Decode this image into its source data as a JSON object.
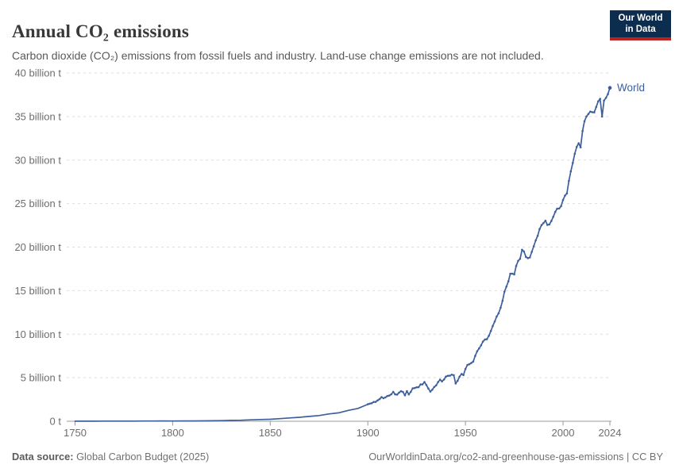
{
  "logo": {
    "line1": "Our World",
    "line2": "in Data",
    "bg_color": "#0d2d4e",
    "accent_color": "#bb221b"
  },
  "footer": {
    "source_label": "Data source:",
    "source_value": " Global Carbon Budget (2025)",
    "citation": "OurWorldinData.org/co2-and-greenhouse-gas-emissions | CC BY"
  },
  "chart_data": {
    "type": "line",
    "title": "Annual CO₂ emissions",
    "subtitle": "Carbon dioxide (CO₂) emissions from fossil fuels and industry. Land-use change emissions are not included.",
    "xlabel": "",
    "ylabel": "",
    "xlim": [
      1750,
      2024
    ],
    "ylim": [
      0,
      40
    ],
    "grid": "horizontal-dashed",
    "legend_position": "end-of-line-label",
    "x_ticks": [
      1750,
      1800,
      1850,
      1900,
      1950,
      2000,
      2024
    ],
    "y_ticks": [
      {
        "v": 0,
        "label": "0 t"
      },
      {
        "v": 5,
        "label": "5 billion t"
      },
      {
        "v": 10,
        "label": "10 billion t"
      },
      {
        "v": 15,
        "label": "15 billion t"
      },
      {
        "v": 20,
        "label": "20 billion t"
      },
      {
        "v": 25,
        "label": "25 billion t"
      },
      {
        "v": 30,
        "label": "30 billion t"
      },
      {
        "v": 35,
        "label": "35 billion t"
      },
      {
        "v": 40,
        "label": "40 billion t"
      }
    ],
    "series": [
      {
        "name": "World",
        "color": "#3d5f9c",
        "unit": "billion tonnes CO₂",
        "points": [
          [
            1750,
            0.01
          ],
          [
            1755,
            0.011
          ],
          [
            1760,
            0.012
          ],
          [
            1765,
            0.014
          ],
          [
            1770,
            0.016
          ],
          [
            1775,
            0.019
          ],
          [
            1780,
            0.021
          ],
          [
            1785,
            0.025
          ],
          [
            1790,
            0.03
          ],
          [
            1795,
            0.033
          ],
          [
            1800,
            0.03
          ],
          [
            1805,
            0.032
          ],
          [
            1810,
            0.04
          ],
          [
            1815,
            0.045
          ],
          [
            1820,
            0.054
          ],
          [
            1825,
            0.07
          ],
          [
            1830,
            0.1
          ],
          [
            1835,
            0.12
          ],
          [
            1840,
            0.16
          ],
          [
            1845,
            0.2
          ],
          [
            1850,
            0.23
          ],
          [
            1855,
            0.3
          ],
          [
            1860,
            0.38
          ],
          [
            1865,
            0.46
          ],
          [
            1870,
            0.56
          ],
          [
            1875,
            0.66
          ],
          [
            1880,
            0.84
          ],
          [
            1885,
            0.97
          ],
          [
            1890,
            1.25
          ],
          [
            1895,
            1.48
          ],
          [
            1900,
            1.95
          ],
          [
            1901,
            2.02
          ],
          [
            1902,
            2.08
          ],
          [
            1903,
            2.21
          ],
          [
            1904,
            2.22
          ],
          [
            1905,
            2.4
          ],
          [
            1906,
            2.54
          ],
          [
            1907,
            2.77
          ],
          [
            1908,
            2.65
          ],
          [
            1909,
            2.74
          ],
          [
            1910,
            2.9
          ],
          [
            1911,
            2.95
          ],
          [
            1912,
            3.1
          ],
          [
            1913,
            3.38
          ],
          [
            1914,
            3.09
          ],
          [
            1915,
            3.06
          ],
          [
            1916,
            3.29
          ],
          [
            1917,
            3.45
          ],
          [
            1918,
            3.37
          ],
          [
            1919,
            2.98
          ],
          [
            1920,
            3.45
          ],
          [
            1921,
            3.09
          ],
          [
            1922,
            3.38
          ],
          [
            1923,
            3.78
          ],
          [
            1924,
            3.82
          ],
          [
            1925,
            3.9
          ],
          [
            1926,
            3.92
          ],
          [
            1927,
            4.23
          ],
          [
            1928,
            4.24
          ],
          [
            1929,
            4.5
          ],
          [
            1930,
            4.16
          ],
          [
            1931,
            3.76
          ],
          [
            1932,
            3.41
          ],
          [
            1933,
            3.62
          ],
          [
            1934,
            3.94
          ],
          [
            1935,
            4.12
          ],
          [
            1936,
            4.51
          ],
          [
            1937,
            4.77
          ],
          [
            1938,
            4.58
          ],
          [
            1939,
            4.79
          ],
          [
            1940,
            5.13
          ],
          [
            1941,
            5.22
          ],
          [
            1942,
            5.23
          ],
          [
            1943,
            5.35
          ],
          [
            1944,
            5.29
          ],
          [
            1945,
            4.34
          ],
          [
            1946,
            4.66
          ],
          [
            1947,
            5.12
          ],
          [
            1948,
            5.43
          ],
          [
            1949,
            5.31
          ],
          [
            1950,
            6.0
          ],
          [
            1951,
            6.47
          ],
          [
            1952,
            6.55
          ],
          [
            1953,
            6.7
          ],
          [
            1954,
            6.85
          ],
          [
            1955,
            7.51
          ],
          [
            1956,
            8.04
          ],
          [
            1957,
            8.36
          ],
          [
            1958,
            8.72
          ],
          [
            1959,
            9.16
          ],
          [
            1960,
            9.39
          ],
          [
            1961,
            9.42
          ],
          [
            1962,
            9.81
          ],
          [
            1963,
            10.37
          ],
          [
            1964,
            10.94
          ],
          [
            1965,
            11.45
          ],
          [
            1966,
            12.03
          ],
          [
            1967,
            12.4
          ],
          [
            1968,
            13.04
          ],
          [
            1969,
            13.82
          ],
          [
            1970,
            14.9
          ],
          [
            1971,
            15.46
          ],
          [
            1972,
            16.07
          ],
          [
            1973,
            16.94
          ],
          [
            1974,
            16.96
          ],
          [
            1975,
            16.87
          ],
          [
            1976,
            17.84
          ],
          [
            1977,
            18.42
          ],
          [
            1978,
            18.65
          ],
          [
            1979,
            19.7
          ],
          [
            1980,
            19.5
          ],
          [
            1981,
            18.87
          ],
          [
            1982,
            18.73
          ],
          [
            1983,
            18.82
          ],
          [
            1984,
            19.46
          ],
          [
            1985,
            20.1
          ],
          [
            1986,
            20.77
          ],
          [
            1987,
            21.3
          ],
          [
            1988,
            22.08
          ],
          [
            1989,
            22.53
          ],
          [
            1990,
            22.76
          ],
          [
            1991,
            23.03
          ],
          [
            1992,
            22.55
          ],
          [
            1993,
            22.61
          ],
          [
            1994,
            23.0
          ],
          [
            1995,
            23.48
          ],
          [
            1996,
            24.05
          ],
          [
            1997,
            24.41
          ],
          [
            1998,
            24.44
          ],
          [
            1999,
            24.7
          ],
          [
            2000,
            25.42
          ],
          [
            2001,
            25.92
          ],
          [
            2002,
            26.17
          ],
          [
            2003,
            27.62
          ],
          [
            2004,
            28.7
          ],
          [
            2005,
            29.68
          ],
          [
            2006,
            30.72
          ],
          [
            2007,
            31.51
          ],
          [
            2008,
            31.94
          ],
          [
            2009,
            31.46
          ],
          [
            2010,
            33.34
          ],
          [
            2011,
            34.46
          ],
          [
            2012,
            35.01
          ],
          [
            2013,
            35.3
          ],
          [
            2014,
            35.56
          ],
          [
            2015,
            35.5
          ],
          [
            2016,
            35.48
          ],
          [
            2017,
            36.1
          ],
          [
            2018,
            36.74
          ],
          [
            2019,
            37.04
          ],
          [
            2020,
            35.0
          ],
          [
            2021,
            36.83
          ],
          [
            2022,
            37.15
          ],
          [
            2023,
            37.58
          ],
          [
            2024,
            38.3
          ]
        ]
      }
    ],
    "colors": {
      "line": "#3d5f9c",
      "grid": "#dedede",
      "axis": "#9a9a9a",
      "tick_text": "#6d6d6d"
    }
  }
}
